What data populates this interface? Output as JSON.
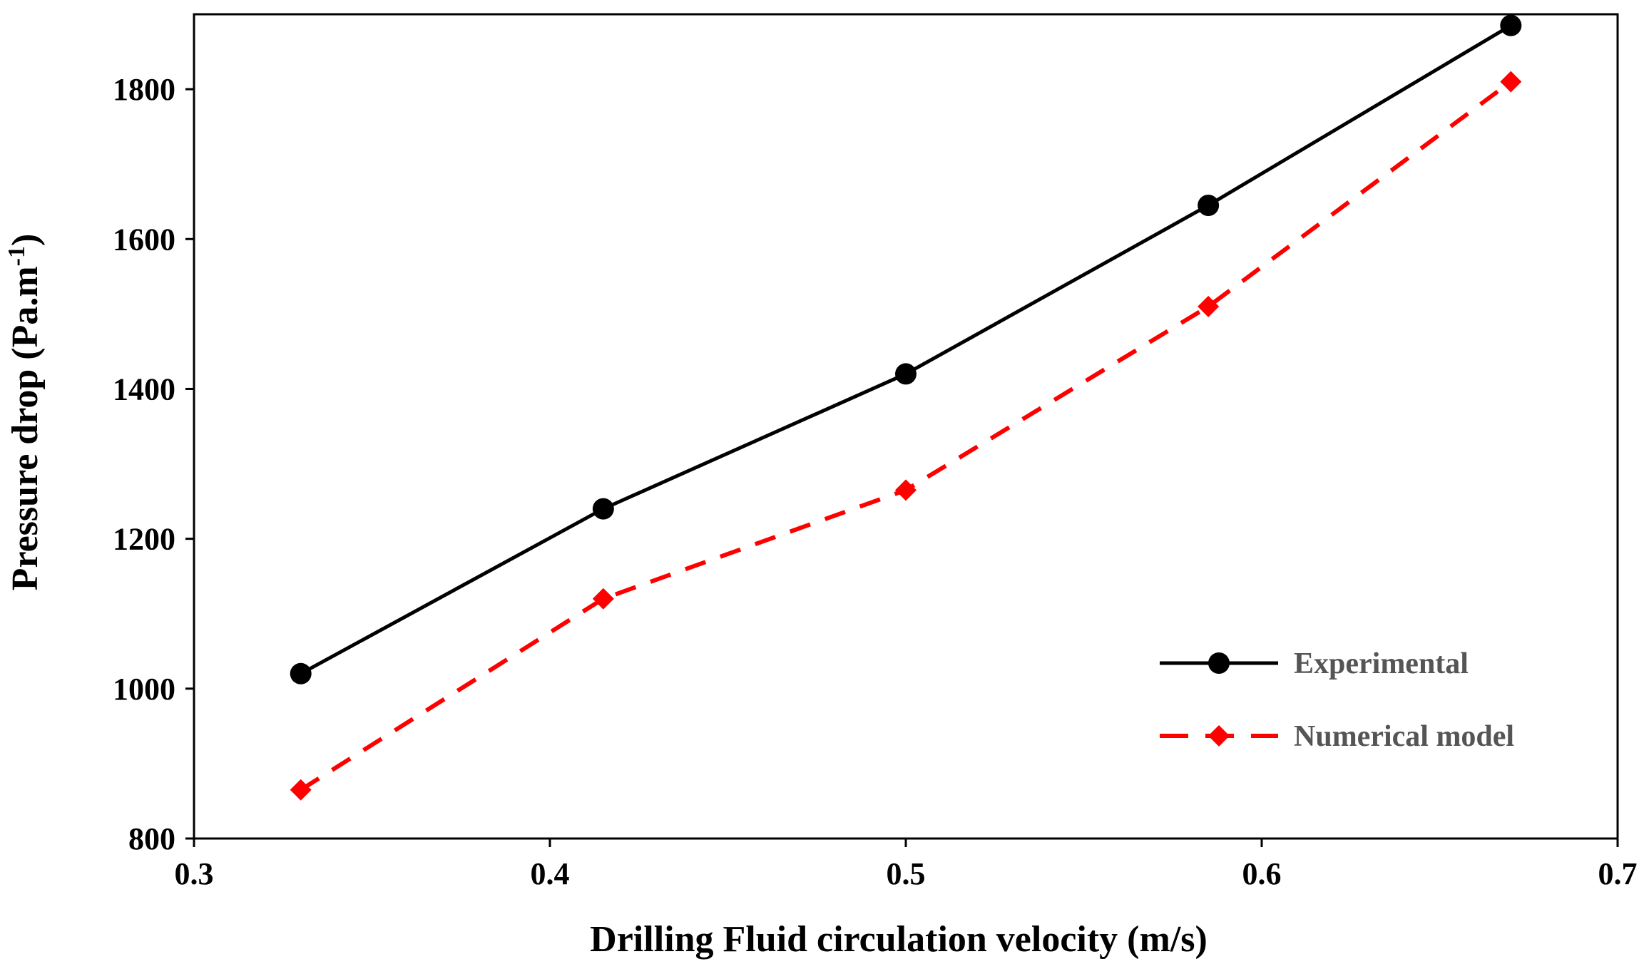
{
  "chart_data": {
    "type": "line",
    "title": "",
    "xlabel": "Drilling  Fluid circulation  velocity (m/s)",
    "ylabel_main": "Pressure drop (Pa.m",
    "ylabel_sup": "-1",
    "ylabel_close": ")",
    "xlim": [
      0.3,
      0.7
    ],
    "ylim": [
      800,
      1900
    ],
    "xticks": [
      0.3,
      0.4,
      0.5,
      0.6,
      0.7
    ],
    "xtick_labels": [
      "0.3",
      "0.4",
      "0.5",
      "0.6",
      "0.7"
    ],
    "yticks": [
      800,
      1000,
      1200,
      1400,
      1600,
      1800
    ],
    "ytick_labels": [
      "800",
      "1000",
      "1200",
      "1400",
      "1600",
      "1800"
    ],
    "grid": false,
    "legend_position": "lower-right",
    "x": [
      0.33,
      0.415,
      0.5,
      0.585,
      0.67
    ],
    "series": [
      {
        "name": "Experimental",
        "values": [
          1020,
          1240,
          1420,
          1645,
          1885
        ],
        "color": "#000000",
        "line_style": "solid",
        "marker": "circle"
      },
      {
        "name": "Numerical model",
        "values": [
          865,
          1120,
          1265,
          1510,
          1810
        ],
        "color": "#ff0000",
        "line_style": "dashed",
        "marker": "diamond"
      }
    ]
  }
}
